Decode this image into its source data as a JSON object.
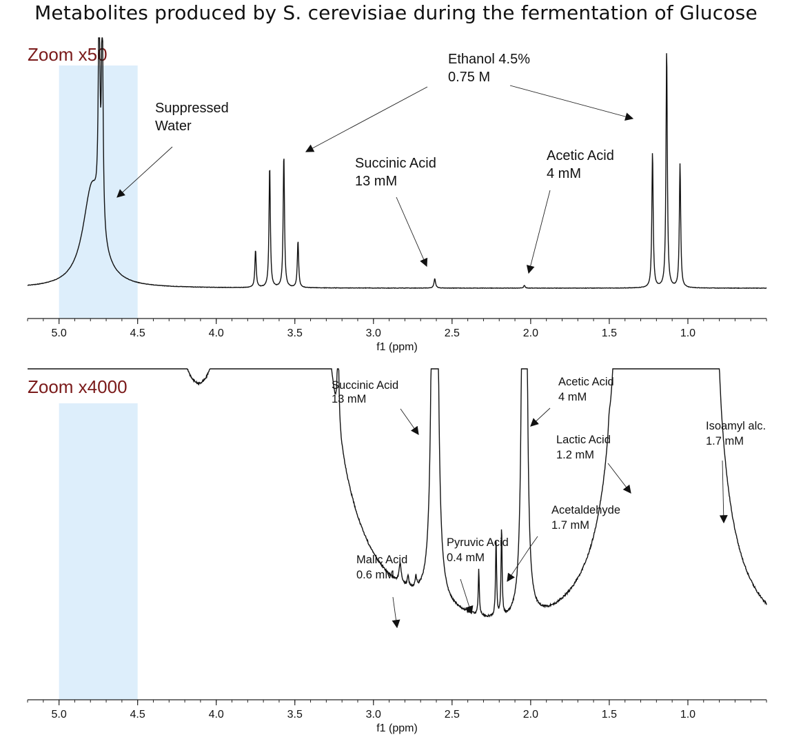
{
  "title": "Metabolites produced by S. cerevisiae during the fermentation of Glucose",
  "colors": {
    "zoom_label": "#7a1a1a",
    "highlight": "#ddeefb",
    "trace": "#111111"
  },
  "chart_data": [
    {
      "type": "line",
      "zoom_label": "Zoom x50",
      "xlabel": "f1 (ppm)",
      "xlim": [
        5.2,
        0.5
      ],
      "x_reversed": true,
      "ticks": [
        "5.0",
        "4.5",
        "4.0",
        "3.5",
        "3.0",
        "2.5",
        "2.0",
        "1.5",
        "1.0"
      ],
      "tick_values": [
        5.0,
        4.5,
        4.0,
        3.5,
        3.0,
        2.5,
        2.0,
        1.5,
        1.0
      ],
      "highlight_range": [
        5.0,
        4.5
      ],
      "ylim": [
        0,
        1
      ],
      "peaks": [
        {
          "x": 4.79,
          "h": 0.43,
          "w": 0.07
        },
        {
          "x": 4.745,
          "h": 0.95,
          "w": 0.006
        },
        {
          "x": 4.725,
          "h": 0.95,
          "w": 0.006
        },
        {
          "x": 3.75,
          "h": 0.16,
          "w": 0.005
        },
        {
          "x": 3.66,
          "h": 0.52,
          "w": 0.005
        },
        {
          "x": 3.57,
          "h": 0.57,
          "w": 0.005
        },
        {
          "x": 3.48,
          "h": 0.2,
          "w": 0.005
        },
        {
          "x": 2.61,
          "h": 0.04,
          "w": 0.006
        },
        {
          "x": 2.04,
          "h": 0.012,
          "w": 0.005
        },
        {
          "x": 1.225,
          "h": 0.58,
          "w": 0.005
        },
        {
          "x": 1.135,
          "h": 1.02,
          "w": 0.005
        },
        {
          "x": 1.05,
          "h": 0.53,
          "w": 0.005
        }
      ],
      "annotations": [
        {
          "lines": [
            "Suppressed",
            "Water"
          ]
        },
        {
          "lines": [
            "Ethanol 4.5%",
            "0.75 M"
          ]
        },
        {
          "lines": [
            "Succinic Acid",
            "13 mM"
          ]
        },
        {
          "lines": [
            "Acetic Acid",
            "4 mM"
          ]
        }
      ]
    },
    {
      "type": "line",
      "zoom_label": "Zoom x4000",
      "xlabel": "f1 (ppm)",
      "xlim": [
        5.2,
        0.5
      ],
      "x_reversed": true,
      "ticks": [
        "5.0",
        "4.5",
        "4.0",
        "3.5",
        "3.0",
        "2.5",
        "2.0",
        "1.5",
        "1.0"
      ],
      "tick_values": [
        5.0,
        4.5,
        4.0,
        3.5,
        3.0,
        2.5,
        2.0,
        1.5,
        1.0
      ],
      "highlight_range": [
        5.0,
        4.5
      ],
      "ylim": [
        0,
        1
      ],
      "peaks": [
        {
          "x": 5.18,
          "h": 0.14,
          "w": 0.01
        },
        {
          "x": 4.735,
          "h": 60,
          "w": 0.07
        },
        {
          "x": 3.94,
          "h": 0.08,
          "w": 0.008
        },
        {
          "x": 3.88,
          "h": 0.16,
          "w": 0.008
        },
        {
          "x": 3.855,
          "h": 0.3,
          "w": 0.008
        },
        {
          "x": 3.825,
          "h": 0.7,
          "w": 0.006
        },
        {
          "x": 3.805,
          "h": 0.7,
          "w": 0.006
        },
        {
          "x": 3.61,
          "h": 60,
          "w": 0.05
        },
        {
          "x": 3.37,
          "h": 0.3,
          "w": 0.008
        },
        {
          "x": 3.295,
          "h": 0.1,
          "w": 0.006
        },
        {
          "x": 3.225,
          "h": 0.45,
          "w": 0.006
        },
        {
          "x": 2.83,
          "h": 0.1,
          "w": 0.008
        },
        {
          "x": 2.78,
          "h": 0.05,
          "w": 0.006
        },
        {
          "x": 2.73,
          "h": 0.05,
          "w": 0.006
        },
        {
          "x": 2.61,
          "h": 20,
          "w": 0.006
        },
        {
          "x": 2.33,
          "h": 0.22,
          "w": 0.004
        },
        {
          "x": 2.22,
          "h": 0.38,
          "w": 0.004
        },
        {
          "x": 2.185,
          "h": 0.43,
          "w": 0.004
        },
        {
          "x": 2.04,
          "h": 20,
          "w": 0.005
        },
        {
          "x": 1.5,
          "h": 0.06,
          "w": 0.008
        },
        {
          "x": 1.42,
          "h": 0.12,
          "w": 0.008
        },
        {
          "x": 1.3,
          "h": 60,
          "w": 0.025
        },
        {
          "x": 1.315,
          "h": 0.9,
          "w": 0.004
        },
        {
          "x": 0.98,
          "h": 60,
          "w": 0.025
        },
        {
          "x": 0.875,
          "h": 1.05,
          "w": 0.006
        },
        {
          "x": 0.815,
          "h": 0.7,
          "w": 0.006
        }
      ],
      "annotations": [
        {
          "lines": [
            "Succinic Acid",
            "13 mM"
          ]
        },
        {
          "lines": [
            "Acetic Acid",
            "4 mM"
          ]
        },
        {
          "lines": [
            "Lactic Acid",
            "1.2 mM"
          ]
        },
        {
          "lines": [
            "Isoamyl alc.",
            "1.7 mM"
          ]
        },
        {
          "lines": [
            "Acetaldehyde",
            "1.7 mM"
          ]
        },
        {
          "lines": [
            "Pyruvic Acid",
            "0.4 mM"
          ]
        },
        {
          "lines": [
            "Malic Acid",
            "0.6 mM"
          ]
        }
      ]
    }
  ]
}
